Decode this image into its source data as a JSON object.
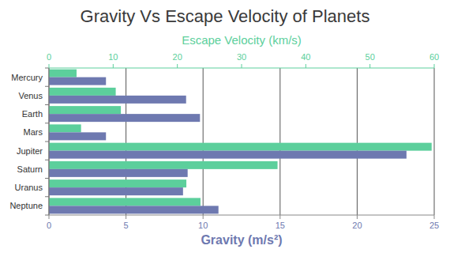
{
  "chart_data": {
    "type": "bar",
    "orientation": "horizontal",
    "title": "Gravity Vs Escape Velocity of Planets",
    "ylabel": "Gravity (m/s²)",
    "y2label": "Escape Velocity (km/s)",
    "categories": [
      "Mercury",
      "Venus",
      "Earth",
      "Mars",
      "Jupiter",
      "Saturn",
      "Uranus",
      "Neptune"
    ],
    "series": [
      {
        "axis": "y2",
        "color": "#5ccf9c",
        "values": [
          4.3,
          10.4,
          11.2,
          5.0,
          59.6,
          35.6,
          21.4,
          23.6
        ]
      },
      {
        "axis": "y",
        "color": "#6e79b0",
        "values": [
          3.7,
          8.9,
          9.8,
          3.7,
          23.2,
          9.0,
          8.7,
          11.0
        ]
      }
    ],
    "ylim": [
      0,
      25
    ],
    "yticks": [
      0,
      5,
      10,
      15,
      20,
      25
    ],
    "y2lim": [
      0,
      60
    ],
    "y2ticks": [
      0,
      10,
      20,
      30,
      40,
      50,
      60
    ],
    "grid": true
  }
}
